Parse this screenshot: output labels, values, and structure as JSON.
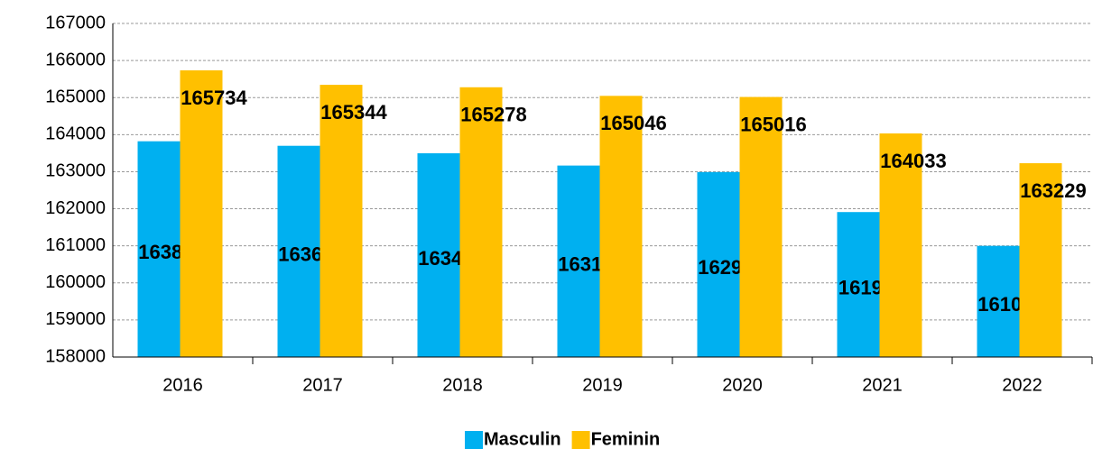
{
  "chart_data": {
    "type": "bar",
    "categories": [
      "2016",
      "2017",
      "2018",
      "2019",
      "2020",
      "2021",
      "2022"
    ],
    "series": [
      {
        "name": "Masculin",
        "color": "#00b0f0",
        "values": [
          163821,
          163699,
          163497,
          163166,
          162991,
          161911,
          161000
        ]
      },
      {
        "name": "Feminin",
        "color": "#ffc000",
        "values": [
          165734,
          165344,
          165278,
          165046,
          165016,
          164033,
          163229
        ]
      }
    ],
    "ylim": [
      158000,
      167000
    ],
    "yticks": [
      158000,
      159000,
      160000,
      161000,
      162000,
      163000,
      164000,
      165000,
      166000,
      167000
    ],
    "grid": true,
    "legend": "bottom"
  }
}
